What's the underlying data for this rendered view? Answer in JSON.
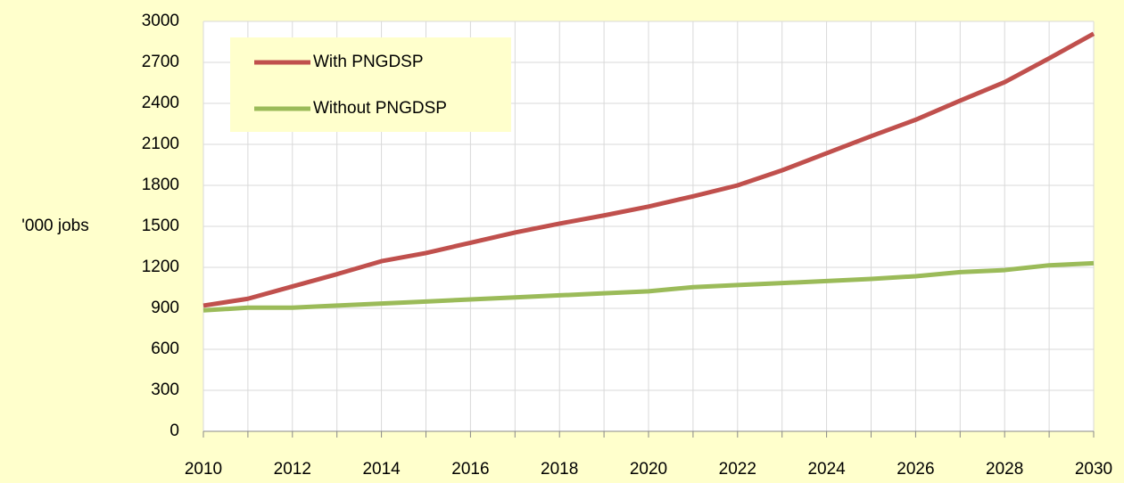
{
  "chart_data": {
    "type": "line",
    "y_label": "'000 jobs",
    "x": [
      2010,
      2011,
      2012,
      2013,
      2014,
      2015,
      2016,
      2017,
      2018,
      2019,
      2020,
      2021,
      2022,
      2023,
      2024,
      2025,
      2026,
      2027,
      2028,
      2029,
      2030
    ],
    "series": [
      {
        "name": "With PNGDSP",
        "color": "#c0504d",
        "values": [
          920,
          970,
          1060,
          1150,
          1245,
          1305,
          1380,
          1455,
          1520,
          1580,
          1645,
          1720,
          1800,
          1910,
          2035,
          2160,
          2280,
          2420,
          2555,
          2730,
          2910
        ]
      },
      {
        "name": "Without PNGDSP",
        "color": "#9bbb59",
        "values": [
          885,
          905,
          905,
          920,
          935,
          950,
          965,
          980,
          995,
          1010,
          1025,
          1055,
          1070,
          1085,
          1100,
          1115,
          1135,
          1165,
          1180,
          1215,
          1230
        ]
      }
    ],
    "xlim": [
      2010,
      2030
    ],
    "xticks": [
      2010,
      2012,
      2014,
      2016,
      2018,
      2020,
      2022,
      2024,
      2026,
      2028,
      2030
    ],
    "ylim": [
      0,
      3000
    ],
    "yticks": [
      0,
      300,
      600,
      900,
      1200,
      1500,
      1800,
      2100,
      2400,
      2700,
      3000
    ],
    "grid": true,
    "legend": "top-left"
  }
}
